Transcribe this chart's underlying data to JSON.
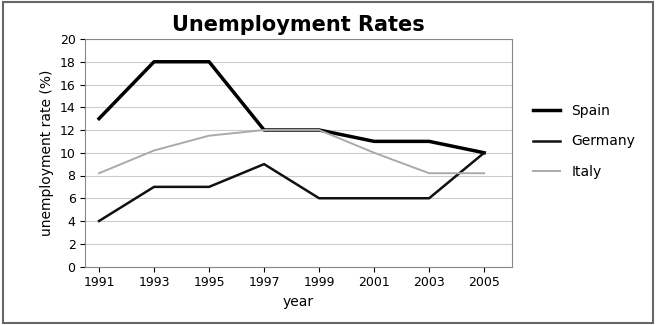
{
  "title": "Unemployment Rates",
  "xlabel": "year",
  "ylabel": "unemployment rate (%)",
  "years": [
    1991,
    1993,
    1995,
    1997,
    1999,
    2001,
    2003,
    2005
  ],
  "spain": [
    13,
    18,
    18,
    12,
    12,
    11,
    11,
    10
  ],
  "germany": [
    4,
    7,
    7,
    9,
    6,
    6,
    6,
    10
  ],
  "italy": [
    8.2,
    10.2,
    11.5,
    12,
    12,
    10,
    8.2,
    8.2
  ],
  "spain_color": "#000000",
  "germany_color": "#111111",
  "italy_color": "#aaaaaa",
  "spain_linewidth": 2.5,
  "germany_linewidth": 1.8,
  "italy_linewidth": 1.4,
  "ylim": [
    0,
    20
  ],
  "yticks": [
    0,
    2,
    4,
    6,
    8,
    10,
    12,
    14,
    16,
    18,
    20
  ],
  "xticks": [
    1991,
    1993,
    1995,
    1997,
    1999,
    2001,
    2003,
    2005
  ],
  "title_fontsize": 15,
  "axis_label_fontsize": 10,
  "tick_fontsize": 9,
  "legend_fontsize": 10,
  "background_color": "#ffffff",
  "grid_color": "#cccccc",
  "border_color": "#888888"
}
